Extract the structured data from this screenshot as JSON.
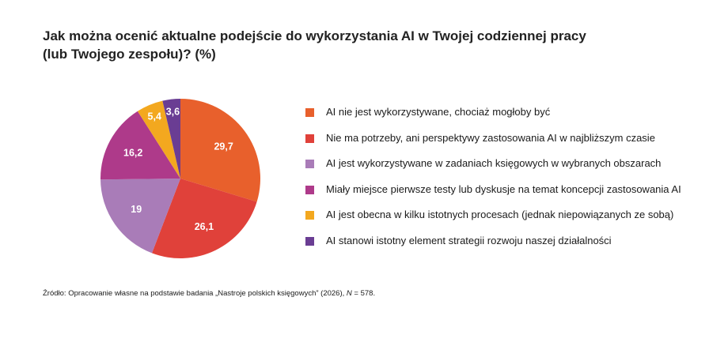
{
  "title_line1": "Jak można ocenić aktualne podejście do wykorzystania AI w Twojej codziennej pracy",
  "title_line2": "(lub Twojego zespołu)? (%)",
  "source": {
    "prefix": "Źródło: Opracowanie własne na podstawie badania „Nastroje polskich księgowych” (2026), ",
    "n_label": "N",
    "n_suffix": " = 578."
  },
  "chart_data": {
    "type": "pie",
    "slices": [
      {
        "label": "AI nie jest wykorzystywane, chociaż mogłoby być",
        "value": 29.7,
        "display": "29,7",
        "color": "#E8602C"
      },
      {
        "label": "Nie ma potrzeby, ani perspektywy zastosowania AI w najbliższym czasie",
        "value": 26.1,
        "display": "26,1",
        "color": "#E0413A"
      },
      {
        "label": "AI jest wykorzystywane w zadaniach księgowych w wybranych obszarach",
        "value": 19,
        "display": "19",
        "color": "#A97CB8"
      },
      {
        "label": "Miały miejsce pierwsze testy lub dyskusje na temat koncepcji zastosowania AI",
        "value": 16.2,
        "display": "16,2",
        "color": "#AE3A8A"
      },
      {
        "label": "AI jest obecna w kilku istotnych procesach (jednak niepowiązanych ze sobą)",
        "value": 5.4,
        "display": "5,4",
        "color": "#F3A81F"
      },
      {
        "label": "AI stanowi istotny element strategii rozwoju naszej działalności",
        "value": 3.6,
        "display": "3,6",
        "color": "#6A3D93"
      }
    ],
    "start_angle": "12 o'clock",
    "direction": "clockwise",
    "legend_position": "right"
  }
}
